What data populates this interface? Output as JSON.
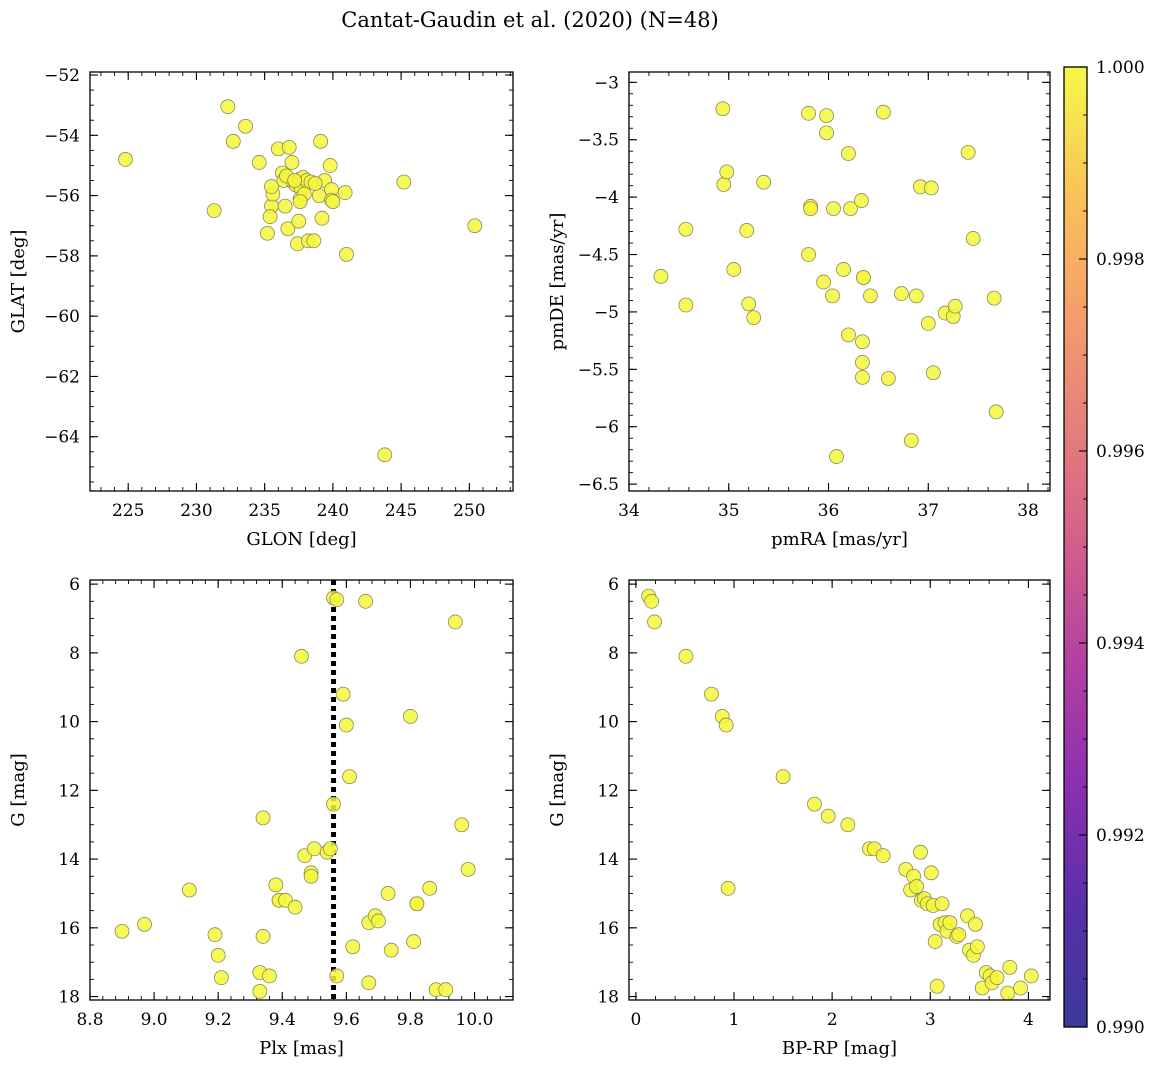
{
  "title": "Cantat-Gaudin et al. (2020) (N=48)",
  "colors": {
    "point": "#f4f73a",
    "point_edge": "#8a8a5a",
    "vline": "#000000"
  },
  "chart_data": [
    {
      "type": "scatter",
      "xlabel": "GLON [deg]",
      "ylabel": "GLAT [deg]",
      "xlim": [
        222.2,
        253.2
      ],
      "ylim": [
        -65.8,
        -51.9
      ],
      "y_inverted": false,
      "xticks": [
        225,
        230,
        235,
        240,
        245,
        250
      ],
      "yticks": [
        -64,
        -62,
        -60,
        -58,
        -56,
        -54,
        -52
      ],
      "minor_x": 1,
      "minor_y": 0.5,
      "x": [
        224.8,
        232.3,
        232.7,
        233.6,
        234.6,
        235.5,
        235.6,
        235.4,
        236.0,
        236.3,
        236.4,
        236.5,
        236.7,
        236.8,
        237.0,
        237.1,
        237.3,
        237.4,
        237.6,
        237.7,
        237.8,
        237.6,
        237.5,
        237.9,
        238.1,
        238.2,
        238.4,
        238.6,
        239.0,
        239.1,
        239.2,
        239.4,
        239.8,
        239.9,
        239.9,
        240.0,
        240.9,
        241.0,
        245.2,
        250.4,
        243.8,
        231.3,
        235.2,
        235.5,
        236.6,
        237.2,
        237.6,
        238.7
      ],
      "y": [
        -54.8,
        -53.05,
        -54.2,
        -53.7,
        -54.9,
        -56.35,
        -55.95,
        -56.7,
        -54.45,
        -55.25,
        -55.5,
        -56.35,
        -57.1,
        -54.4,
        -54.9,
        -55.55,
        -55.65,
        -57.6,
        -55.45,
        -55.8,
        -55.4,
        -56.1,
        -56.85,
        -55.95,
        -55.5,
        -57.5,
        -55.55,
        -57.5,
        -56.0,
        -54.2,
        -56.75,
        -55.5,
        -55.0,
        -55.8,
        -56.15,
        -56.2,
        -55.9,
        -57.95,
        -55.55,
        -57.0,
        -64.6,
        -56.5,
        -57.25,
        -55.7,
        -55.35,
        -55.5,
        -56.2,
        -55.6
      ]
    },
    {
      "type": "scatter",
      "xlabel": "pmRA [mas/yr]",
      "ylabel": "pmDE [mas/yr]",
      "xlim": [
        34.0,
        38.22
      ],
      "ylim": [
        -6.56,
        -2.91
      ],
      "y_inverted": false,
      "xticks": [
        34,
        35,
        36,
        37,
        38
      ],
      "yticks": [
        -6.5,
        -6.0,
        -5.5,
        -5.0,
        -4.5,
        -4.0,
        -3.5,
        -3.0
      ],
      "minor_x": 0.2,
      "minor_y": 0.1,
      "x": [
        34.32,
        34.57,
        34.57,
        34.94,
        34.95,
        34.98,
        35.05,
        35.18,
        35.2,
        35.25,
        35.35,
        35.8,
        35.8,
        35.82,
        35.82,
        35.95,
        35.98,
        35.98,
        36.04,
        36.05,
        36.08,
        36.15,
        36.2,
        36.2,
        36.22,
        36.33,
        36.34,
        36.34,
        36.34,
        36.35,
        36.35,
        36.42,
        36.55,
        36.6,
        36.73,
        36.83,
        36.88,
        36.92,
        37.0,
        37.03,
        37.05,
        37.17,
        37.25,
        37.27,
        37.4,
        37.45,
        37.66,
        37.68
      ],
      "y": [
        -4.69,
        -4.28,
        -4.94,
        -3.23,
        -3.89,
        -3.78,
        -4.63,
        -4.29,
        -4.93,
        -5.05,
        -3.87,
        -3.27,
        -4.5,
        -4.08,
        -4.1,
        -4.74,
        -3.44,
        -3.29,
        -4.86,
        -4.1,
        -6.26,
        -4.63,
        -3.62,
        -5.2,
        -4.1,
        -4.03,
        -5.57,
        -5.44,
        -5.26,
        -4.7,
        -4.7,
        -4.86,
        -3.26,
        -5.58,
        -4.84,
        -6.12,
        -4.86,
        -3.91,
        -5.1,
        -3.92,
        -5.53,
        -5.01,
        -5.04,
        -4.95,
        -3.61,
        -4.36,
        -4.88,
        -5.87
      ]
    },
    {
      "type": "scatter",
      "xlabel": "Plx [mas]",
      "ylabel": "G [mag]",
      "xlim": [
        8.8,
        10.12
      ],
      "ylim": [
        18.1,
        5.88
      ],
      "y_inverted": true,
      "xticks": [
        8.8,
        9.0,
        9.2,
        9.4,
        9.6,
        9.8,
        10.0
      ],
      "xtick_labels": [
        "8.8",
        "9.0",
        "9.2",
        "9.4",
        "9.6",
        "9.8",
        "10.0"
      ],
      "yticks": [
        6,
        8,
        10,
        12,
        14,
        16,
        18
      ],
      "minor_x": 0.04,
      "minor_y": 0.5,
      "vline": 9.56,
      "x": [
        8.9,
        8.97,
        9.11,
        9.19,
        9.2,
        9.21,
        9.33,
        9.33,
        9.34,
        9.34,
        9.36,
        9.38,
        9.39,
        9.39,
        9.41,
        9.44,
        9.46,
        9.47,
        9.49,
        9.49,
        9.5,
        9.54,
        9.55,
        9.56,
        9.56,
        9.57,
        9.57,
        9.59,
        9.6,
        9.61,
        9.62,
        9.66,
        9.67,
        9.67,
        9.69,
        9.7,
        9.73,
        9.74,
        9.8,
        9.81,
        9.82,
        9.82,
        9.86,
        9.88,
        9.91,
        9.94,
        9.96,
        9.98
      ],
      "y": [
        16.1,
        15.9,
        14.9,
        16.2,
        16.8,
        17.45,
        17.3,
        17.85,
        12.8,
        16.25,
        17.4,
        14.75,
        15.2,
        15.2,
        15.2,
        15.4,
        8.1,
        13.9,
        14.4,
        14.5,
        13.7,
        13.8,
        13.7,
        12.4,
        6.4,
        17.4,
        6.45,
        9.2,
        10.1,
        11.6,
        16.55,
        6.5,
        15.85,
        17.6,
        15.65,
        15.8,
        15.0,
        16.65,
        9.85,
        16.4,
        15.3,
        15.3,
        14.85,
        17.8,
        17.8,
        7.1,
        13.0,
        14.3
      ]
    },
    {
      "type": "scatter",
      "xlabel": "BP-RP [mag]",
      "ylabel": "G [mag]",
      "xlim": [
        -0.07,
        4.22
      ],
      "ylim": [
        18.1,
        5.88
      ],
      "y_inverted": true,
      "xticks": [
        0,
        1,
        2,
        3,
        4
      ],
      "yticks": [
        6,
        8,
        10,
        12,
        14,
        16,
        18
      ],
      "minor_x": 0.2,
      "minor_y": 0.5,
      "x": [
        0.13,
        0.16,
        0.19,
        0.51,
        0.77,
        0.88,
        0.92,
        0.94,
        1.5,
        1.82,
        1.96,
        2.16,
        2.38,
        2.43,
        2.52,
        2.75,
        2.8,
        2.83,
        2.86,
        2.9,
        2.91,
        2.94,
        2.97,
        3.01,
        3.03,
        3.05,
        3.07,
        3.1,
        3.12,
        3.15,
        3.17,
        3.2,
        3.27,
        3.29,
        3.38,
        3.4,
        3.44,
        3.46,
        3.48,
        3.53,
        3.57,
        3.61,
        3.63,
        3.68,
        3.79,
        3.81,
        3.92,
        4.03
      ],
      "y": [
        6.35,
        6.5,
        7.1,
        8.1,
        9.2,
        9.85,
        10.1,
        14.85,
        11.6,
        12.4,
        12.75,
        13.0,
        13.7,
        13.7,
        13.9,
        14.3,
        14.9,
        14.5,
        14.8,
        13.8,
        15.2,
        15.15,
        15.3,
        14.4,
        15.35,
        16.4,
        17.7,
        15.9,
        15.3,
        15.85,
        16.1,
        15.85,
        16.25,
        16.2,
        15.65,
        16.65,
        16.8,
        15.9,
        16.55,
        17.75,
        17.3,
        17.4,
        17.6,
        17.45,
        17.9,
        17.15,
        17.75,
        17.4
      ]
    }
  ],
  "colorbar": {
    "range": [
      0.99,
      1.0
    ],
    "ticks": [
      0.99,
      0.992,
      0.994,
      0.996,
      0.998,
      1.0
    ],
    "tick_labels": [
      "0.990",
      "0.992",
      "0.994",
      "0.996",
      "0.998",
      "1.000"
    ],
    "colormap": "plasma"
  }
}
